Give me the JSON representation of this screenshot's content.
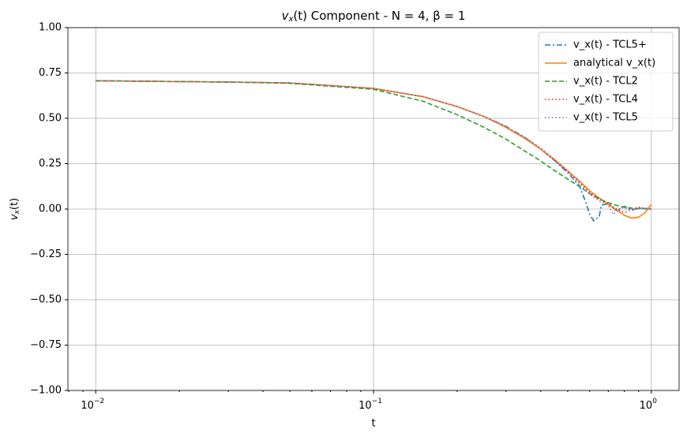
{
  "chart_data": {
    "type": "line",
    "title": {
      "main": "v",
      "sub": "x",
      "rest": "(t) Component - N = 4, β = 1"
    },
    "xlabel": "t",
    "ylabel": {
      "main": "v",
      "sub": "x",
      "rest": "(t)"
    },
    "xscale": "log",
    "xlim": [
      0.00794,
      1.259
    ],
    "ylim": [
      -1,
      1
    ],
    "xticks": [
      {
        "value": 0.01,
        "label": "10",
        "exp": "−2"
      },
      {
        "value": 0.1,
        "label": "10",
        "exp": "−1"
      },
      {
        "value": 1,
        "label": "10",
        "exp": "0"
      }
    ],
    "xminorticks": [
      0.008,
      0.009,
      0.02,
      0.03,
      0.04,
      0.05,
      0.06,
      0.07,
      0.08,
      0.09,
      0.2,
      0.3,
      0.4,
      0.5,
      0.6,
      0.7,
      0.8,
      0.9
    ],
    "yticks": [
      {
        "value": -1,
        "label": "−1.00"
      },
      {
        "value": -0.75,
        "label": "−0.75"
      },
      {
        "value": -0.5,
        "label": "−0.50"
      },
      {
        "value": -0.25,
        "label": "−0.25"
      },
      {
        "value": 0,
        "label": "0.00"
      },
      {
        "value": 0.25,
        "label": "0.25"
      },
      {
        "value": 0.5,
        "label": "0.50"
      },
      {
        "value": 0.75,
        "label": "0.75"
      },
      {
        "value": 1,
        "label": "1.00"
      }
    ],
    "grid": true,
    "legend": "upper right",
    "series": [
      {
        "name": "v_x(t) - TCL5+",
        "color": "#1f77b4",
        "dash": "7,3,2,3",
        "x": [
          0.01,
          0.03,
          0.05,
          0.1,
          0.15,
          0.2,
          0.25,
          0.3,
          0.35,
          0.4,
          0.45,
          0.5,
          0.55,
          0.58,
          0.6,
          0.62,
          0.65,
          0.66,
          0.7,
          0.75,
          0.8,
          0.85,
          0.9,
          1.0
        ],
        "values": [
          0.707,
          0.7,
          0.695,
          0.665,
          0.62,
          0.565,
          0.51,
          0.455,
          0.395,
          0.33,
          0.265,
          0.2,
          0.13,
          0.04,
          -0.03,
          -0.065,
          -0.04,
          0.02,
          0.03,
          -0.01,
          0.015,
          -0.005,
          0.005,
          0.0
        ]
      },
      {
        "name": "analytical v_x(t)",
        "color": "#ff7f0e",
        "dash": "none",
        "x": [
          0.01,
          0.03,
          0.05,
          0.1,
          0.15,
          0.2,
          0.25,
          0.3,
          0.35,
          0.4,
          0.45,
          0.5,
          0.55,
          0.6,
          0.65,
          0.7,
          0.75,
          0.8,
          0.85,
          0.9,
          0.95,
          1.0
        ],
        "values": [
          0.707,
          0.7,
          0.695,
          0.665,
          0.62,
          0.565,
          0.51,
          0.45,
          0.39,
          0.33,
          0.27,
          0.21,
          0.155,
          0.1,
          0.06,
          0.025,
          -0.005,
          -0.035,
          -0.05,
          -0.045,
          -0.02,
          0.025
        ]
      },
      {
        "name": "v_x(t) - TCL2",
        "color": "#2ca02c",
        "dash": "6,3",
        "x": [
          0.01,
          0.03,
          0.05,
          0.1,
          0.15,
          0.2,
          0.25,
          0.3,
          0.35,
          0.4,
          0.45,
          0.5,
          0.55,
          0.6,
          0.65,
          0.7,
          0.75,
          0.8,
          0.85,
          0.9,
          1.0
        ],
        "values": [
          0.707,
          0.7,
          0.693,
          0.66,
          0.595,
          0.52,
          0.45,
          0.385,
          0.32,
          0.265,
          0.21,
          0.165,
          0.125,
          0.085,
          0.055,
          0.035,
          0.02,
          0.01,
          0.005,
          0.002,
          0.0
        ]
      },
      {
        "name": "v_x(t) - TCL4",
        "color": "#d62728",
        "dash": "1.5,3",
        "x": [
          0.01,
          0.03,
          0.05,
          0.1,
          0.15,
          0.2,
          0.25,
          0.3,
          0.35,
          0.4,
          0.45,
          0.5,
          0.55,
          0.6,
          0.65,
          0.7,
          0.75,
          0.8,
          0.85,
          0.9,
          1.0
        ],
        "values": [
          0.707,
          0.7,
          0.695,
          0.665,
          0.62,
          0.565,
          0.51,
          0.455,
          0.395,
          0.335,
          0.27,
          0.21,
          0.15,
          0.09,
          0.055,
          0.03,
          0.0,
          -0.02,
          0.0,
          0.01,
          0.0
        ]
      },
      {
        "name": "v_x(t) - TCL5",
        "color": "#9467bd",
        "dash": "1.5,3",
        "x": [
          0.01,
          0.03,
          0.05,
          0.1,
          0.15,
          0.2,
          0.25,
          0.3,
          0.35,
          0.4,
          0.45,
          0.5,
          0.55,
          0.6,
          0.65,
          0.7,
          0.73,
          0.78,
          0.85,
          0.9,
          1.0
        ],
        "values": [
          0.707,
          0.7,
          0.695,
          0.665,
          0.62,
          0.565,
          0.51,
          0.455,
          0.395,
          0.33,
          0.265,
          0.2,
          0.14,
          0.08,
          0.045,
          0.02,
          -0.03,
          0.01,
          -0.01,
          0.003,
          0.0
        ]
      }
    ]
  }
}
